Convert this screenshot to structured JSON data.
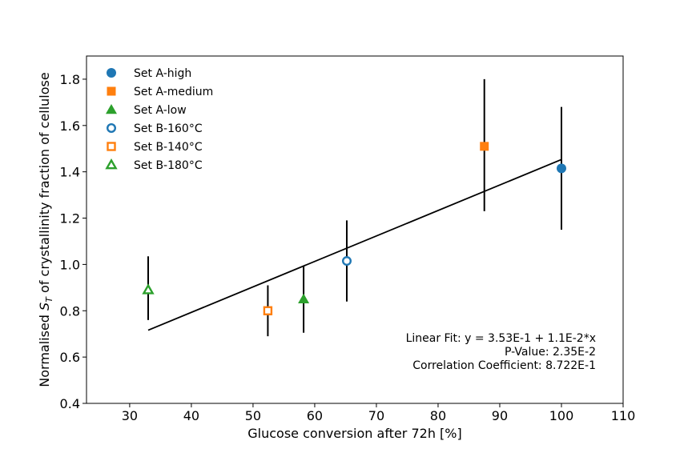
{
  "chart_data": {
    "type": "scatter",
    "xlabel": "Glucose conversion after 72h [%]",
    "ylabel_prefix": "Normalised ",
    "ylabel_symbol": "S",
    "ylabel_subscript": "T",
    "ylabel_suffix": " of crystallinity fraction of cellulose",
    "xlim": [
      23,
      110
    ],
    "ylim": [
      0.4,
      1.9
    ],
    "xticks": [
      30,
      40,
      50,
      60,
      70,
      80,
      90,
      100,
      110
    ],
    "yticks": [
      0.4,
      0.6,
      0.8,
      1.0,
      1.2,
      1.4,
      1.6,
      1.8
    ],
    "xtick_labels": [
      "30",
      "40",
      "50",
      "60",
      "70",
      "80",
      "90",
      "100",
      "110"
    ],
    "ytick_labels": [
      "0.4",
      "0.6",
      "0.8",
      "1.0",
      "1.2",
      "1.4",
      "1.6",
      "1.8"
    ],
    "grid": false,
    "legend_position": "top-left",
    "series": [
      {
        "name": "Set A-high",
        "marker": "circle",
        "filled": true,
        "color": "#1f77b4",
        "x": 100,
        "y": 1.415,
        "err_low": 1.15,
        "err_high": 1.68
      },
      {
        "name": "Set A-medium",
        "marker": "square",
        "filled": true,
        "color": "#ff7f0e",
        "x": 87.5,
        "y": 1.51,
        "err_low": 1.23,
        "err_high": 1.8
      },
      {
        "name": "Set A-low",
        "marker": "triangle",
        "filled": true,
        "color": "#2ca02c",
        "x": 58.2,
        "y": 0.85,
        "err_low": 0.705,
        "err_high": 0.995
      },
      {
        "name": "Set B-160°C",
        "marker": "circle",
        "filled": false,
        "color": "#1f77b4",
        "x": 65.2,
        "y": 1.015,
        "err_low": 0.84,
        "err_high": 1.19
      },
      {
        "name": "Set B-140°C",
        "marker": "square",
        "filled": false,
        "color": "#ff7f0e",
        "x": 52.4,
        "y": 0.8,
        "err_low": 0.69,
        "err_high": 0.91
      },
      {
        "name": "Set B-180°C",
        "marker": "triangle",
        "filled": false,
        "color": "#2ca02c",
        "x": 33,
        "y": 0.89,
        "err_low": 0.76,
        "err_high": 1.035
      }
    ],
    "fit_line": {
      "intercept": 0.353,
      "slope": 0.011,
      "x_start": 33,
      "x_end": 100
    },
    "annotations": [
      "Linear Fit: y = 3.53E-1 + 1.1E-2*x",
      "P-Value: 2.35E-2",
      "Correlation Coefficient: 8.722E-1"
    ]
  }
}
